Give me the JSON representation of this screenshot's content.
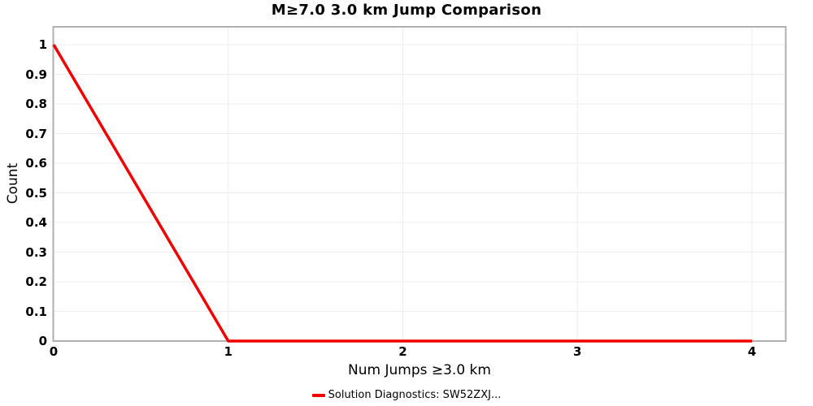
{
  "chart_data": {
    "type": "line",
    "title": "M≥7.0 3.0 km Jump Comparison",
    "xlabel": "Num Jumps ≥3.0 km",
    "ylabel": "Count",
    "x": [
      0,
      1,
      2,
      3,
      4
    ],
    "series": [
      {
        "name": "Solution Diagnostics: SW52ZXJ...",
        "values": [
          1,
          0,
          0,
          0,
          0
        ],
        "color": "#f40000"
      }
    ],
    "legend": {
      "label": "Solution Diagnostics: SW52ZXJ...",
      "position": "bottom-center"
    },
    "xlim": [
      0,
      4.2
    ],
    "ylim": [
      0,
      1.06
    ],
    "grid": true,
    "xticks": [
      {
        "label": "0",
        "value": 0
      },
      {
        "label": "1",
        "value": 1
      },
      {
        "label": "2",
        "value": 2
      },
      {
        "label": "3",
        "value": 3
      },
      {
        "label": "4",
        "value": 4
      }
    ],
    "yticks": [
      {
        "label": "0",
        "value": 0.0
      },
      {
        "label": "0.1",
        "value": 0.1
      },
      {
        "label": "0.2",
        "value": 0.2
      },
      {
        "label": "0.3",
        "value": 0.3
      },
      {
        "label": "0.4",
        "value": 0.4
      },
      {
        "label": "0.5",
        "value": 0.5
      },
      {
        "label": "0.6",
        "value": 0.6
      },
      {
        "label": "0.7",
        "value": 0.7
      },
      {
        "label": "0.8",
        "value": 0.8
      },
      {
        "label": "0.9",
        "value": 0.9
      },
      {
        "label": "1",
        "value": 1.0
      }
    ],
    "colors": {
      "line": "#f40000",
      "grid": "#ededed",
      "border": "#b0b0b0",
      "text": "#000000"
    }
  }
}
